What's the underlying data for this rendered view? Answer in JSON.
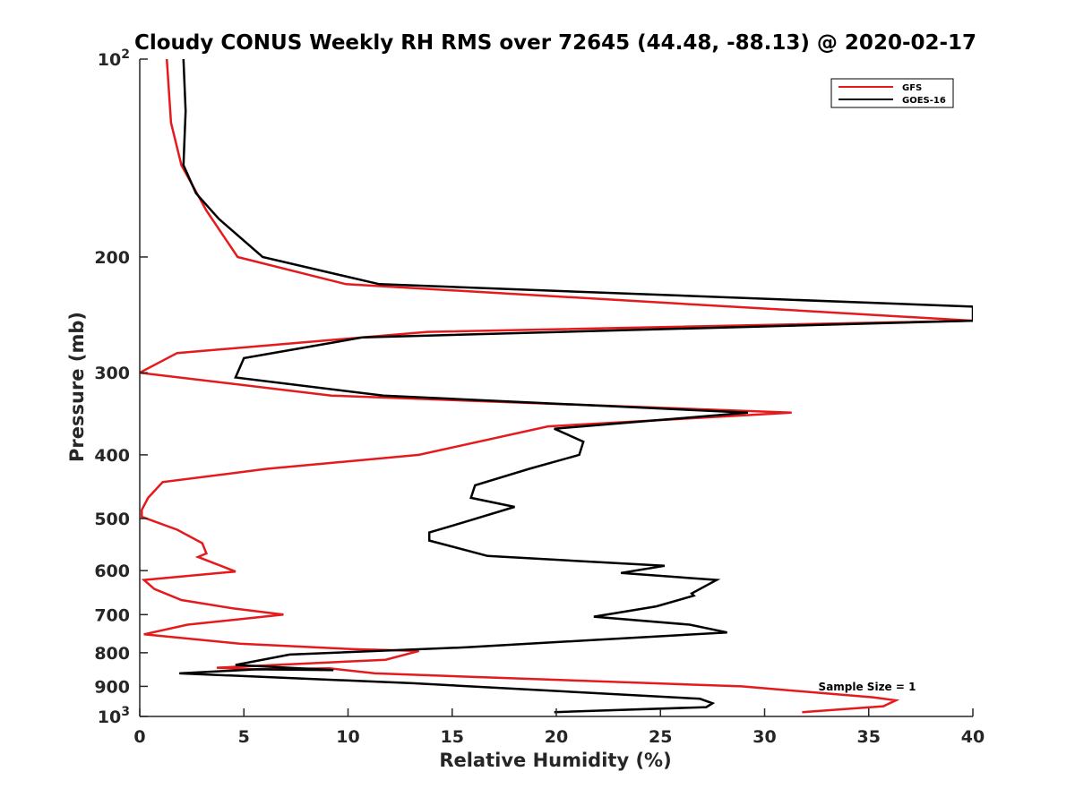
{
  "chart_data": {
    "type": "line",
    "title": "Cloudy CONUS Weekly RH RMS over 72645 (44.48, -88.13) @ 2020-02-17",
    "xlabel": "Relative Humidity (%)",
    "ylabel": "Pressure (mb)",
    "xlim": [
      0,
      40
    ],
    "ylim": [
      100,
      1000
    ],
    "y_scale": "log",
    "y_reversed": true,
    "grid": false,
    "legend_position": "top-right",
    "x_ticks": [
      "0",
      "5",
      "10",
      "15",
      "20",
      "25",
      "30",
      "35",
      "40"
    ],
    "y_ticks": [
      {
        "value": 100,
        "label": "10",
        "exponent": "2"
      },
      {
        "value": 200,
        "label": "200"
      },
      {
        "value": 300,
        "label": "300"
      },
      {
        "value": 400,
        "label": "400"
      },
      {
        "value": 500,
        "label": "500"
      },
      {
        "value": 600,
        "label": "600"
      },
      {
        "value": 700,
        "label": "700"
      },
      {
        "value": 800,
        "label": "800"
      },
      {
        "value": 900,
        "label": "900"
      },
      {
        "value": 1000,
        "label": "10",
        "exponent": "3"
      }
    ],
    "annotation": "Sample Size = 1",
    "series": [
      {
        "name": "GFS",
        "color": "#e41a1c",
        "points": [
          [
            1.3,
            100
          ],
          [
            1.5,
            125
          ],
          [
            2.0,
            145
          ],
          [
            3.2,
            170
          ],
          [
            4.7,
            200
          ],
          [
            9.9,
            220
          ],
          [
            40,
            250
          ],
          [
            13.8,
            260
          ],
          [
            1.8,
            280
          ],
          [
            0,
            300
          ],
          [
            9.2,
            325
          ],
          [
            31.3,
            345
          ],
          [
            19.6,
            362
          ],
          [
            13.4,
            400
          ],
          [
            6.1,
            420
          ],
          [
            1.1,
            440
          ],
          [
            0.4,
            465
          ],
          [
            0.1,
            485
          ],
          [
            0.1,
            497
          ],
          [
            1.8,
            520
          ],
          [
            3.0,
            545
          ],
          [
            3.2,
            565
          ],
          [
            2.8,
            572
          ],
          [
            4.6,
            602
          ],
          [
            0.2,
            620
          ],
          [
            0.7,
            640
          ],
          [
            2.0,
            665
          ],
          [
            4.5,
            685
          ],
          [
            6.9,
            700
          ],
          [
            2.3,
            725
          ],
          [
            0.2,
            750
          ],
          [
            4.8,
            775
          ],
          [
            10.3,
            790
          ],
          [
            13.4,
            795
          ],
          [
            11.8,
            820
          ],
          [
            3.7,
            843
          ],
          [
            5.5,
            848
          ],
          [
            9.1,
            845
          ],
          [
            11.3,
            860
          ],
          [
            28.9,
            900
          ],
          [
            35.2,
            935
          ],
          [
            36.3,
            945
          ],
          [
            35.7,
            965
          ],
          [
            31.8,
            985
          ]
        ]
      },
      {
        "name": "GOES-16",
        "color": "#000000",
        "points": [
          [
            2.1,
            100
          ],
          [
            2.2,
            120
          ],
          [
            2.1,
            145
          ],
          [
            2.7,
            160
          ],
          [
            3.8,
            175
          ],
          [
            5.9,
            200
          ],
          [
            11.5,
            220
          ],
          [
            40,
            238
          ],
          [
            40,
            250
          ],
          [
            10.7,
            265
          ],
          [
            5.0,
            285
          ],
          [
            4.6,
            305
          ],
          [
            11.7,
            325
          ],
          [
            29.2,
            345
          ],
          [
            19.9,
            365
          ],
          [
            21.3,
            382
          ],
          [
            21.1,
            400
          ],
          [
            18.7,
            420
          ],
          [
            16.1,
            445
          ],
          [
            15.9,
            465
          ],
          [
            18.0,
            480
          ],
          [
            15.7,
            505
          ],
          [
            13.9,
            525
          ],
          [
            13.9,
            540
          ],
          [
            16.7,
            570
          ],
          [
            25.2,
            590
          ],
          [
            23.1,
            605
          ],
          [
            27.7,
            620
          ],
          [
            26.5,
            650
          ],
          [
            26.6,
            655
          ],
          [
            24.8,
            680
          ],
          [
            21.8,
            705
          ],
          [
            26.4,
            725
          ],
          [
            28.2,
            745
          ],
          [
            21.8,
            765
          ],
          [
            15.7,
            785
          ],
          [
            7.2,
            805
          ],
          [
            4.6,
            835
          ],
          [
            9.3,
            850
          ],
          [
            5.6,
            848
          ],
          [
            1.9,
            860
          ],
          [
            13.1,
            890
          ],
          [
            26.9,
            940
          ],
          [
            27.5,
            955
          ],
          [
            27.2,
            968
          ],
          [
            19.9,
            985
          ]
        ]
      }
    ]
  }
}
